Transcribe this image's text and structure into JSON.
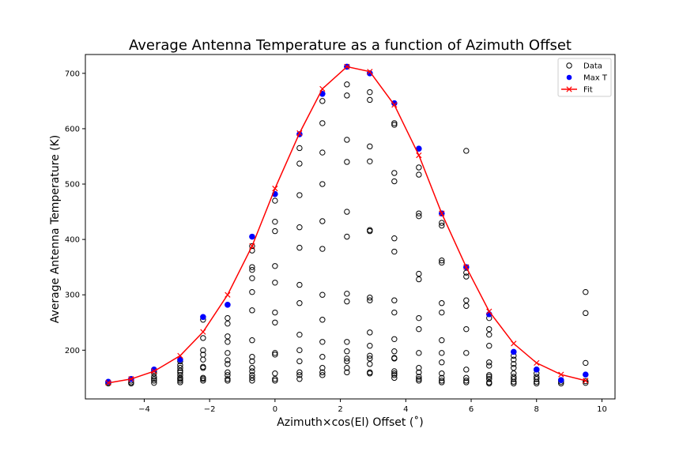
{
  "chart_data": {
    "type": "scatter",
    "title": "Average Antenna Temperature as a function of Azimuth Offset",
    "xlabel": "Azimuth×cos(El)  Offset (˚)",
    "ylabel": "Average Antenna Temperature (K)",
    "xlim": [
      -5.8,
      10.4
    ],
    "ylim": [
      112,
      734
    ],
    "x_ticks": [
      -4,
      -2,
      0,
      2,
      4,
      6,
      8,
      10
    ],
    "x_tick_labels": [
      "−4",
      "−2",
      "0",
      "2",
      "4",
      "6",
      "8",
      "10"
    ],
    "y_ticks": [
      200,
      300,
      400,
      500,
      600,
      700
    ],
    "y_tick_labels": [
      "200",
      "300",
      "400",
      "500",
      "600",
      "700"
    ],
    "grid": false,
    "legend_position": "top-right",
    "legend": [
      {
        "label": "Data",
        "marker": "open-circle",
        "color": "#000000"
      },
      {
        "label": "Max T",
        "marker": "filled-circle",
        "color": "#0000ff"
      },
      {
        "label": "Fit",
        "marker": "x-line",
        "color": "#ff0000"
      }
    ],
    "series": [
      {
        "name": "Data",
        "marker": "open-circle",
        "color": "#000000",
        "points": [
          [
            -5.1,
            140
          ],
          [
            -5.1,
            142
          ],
          [
            -4.4,
            140
          ],
          [
            -4.4,
            142
          ],
          [
            -4.4,
            145
          ],
          [
            -3.7,
            141
          ],
          [
            -3.7,
            145
          ],
          [
            -3.7,
            148
          ],
          [
            -3.7,
            152
          ],
          [
            -3.7,
            158
          ],
          [
            -3.7,
            162
          ],
          [
            -2.9,
            142
          ],
          [
            -2.9,
            145
          ],
          [
            -2.9,
            148
          ],
          [
            -2.9,
            150
          ],
          [
            -2.9,
            155
          ],
          [
            -2.9,
            160
          ],
          [
            -2.9,
            163
          ],
          [
            -2.9,
            168
          ],
          [
            -2.9,
            173
          ],
          [
            -2.9,
            180
          ],
          [
            -2.2,
            145
          ],
          [
            -2.2,
            148
          ],
          [
            -2.2,
            150
          ],
          [
            -2.2,
            168
          ],
          [
            -2.2,
            170
          ],
          [
            -2.2,
            183
          ],
          [
            -2.2,
            192
          ],
          [
            -2.2,
            200
          ],
          [
            -2.2,
            222
          ],
          [
            -2.2,
            255
          ],
          [
            -1.45,
            145
          ],
          [
            -1.45,
            148
          ],
          [
            -1.45,
            155
          ],
          [
            -1.45,
            160
          ],
          [
            -1.45,
            175
          ],
          [
            -1.45,
            182
          ],
          [
            -1.45,
            195
          ],
          [
            -1.45,
            215
          ],
          [
            -1.45,
            225
          ],
          [
            -1.45,
            248
          ],
          [
            -1.45,
            258
          ],
          [
            -0.7,
            145
          ],
          [
            -0.7,
            150
          ],
          [
            -0.7,
            155
          ],
          [
            -0.7,
            162
          ],
          [
            -0.7,
            168
          ],
          [
            -0.7,
            180
          ],
          [
            -0.7,
            188
          ],
          [
            -0.7,
            218
          ],
          [
            -0.7,
            272
          ],
          [
            -0.7,
            305
          ],
          [
            -0.7,
            330
          ],
          [
            -0.7,
            345
          ],
          [
            -0.7,
            350
          ],
          [
            -0.7,
            380
          ],
          [
            -0.7,
            388
          ],
          [
            0.0,
            145
          ],
          [
            0.0,
            148
          ],
          [
            0.0,
            158
          ],
          [
            0.0,
            192
          ],
          [
            0.0,
            195
          ],
          [
            0.0,
            250
          ],
          [
            0.0,
            268
          ],
          [
            0.0,
            322
          ],
          [
            0.0,
            352
          ],
          [
            0.0,
            415
          ],
          [
            0.0,
            432
          ],
          [
            0.0,
            470
          ],
          [
            0.75,
            148
          ],
          [
            0.75,
            155
          ],
          [
            0.75,
            160
          ],
          [
            0.75,
            180
          ],
          [
            0.75,
            200
          ],
          [
            0.75,
            228
          ],
          [
            0.75,
            285
          ],
          [
            0.75,
            318
          ],
          [
            0.75,
            385
          ],
          [
            0.75,
            422
          ],
          [
            0.75,
            480
          ],
          [
            0.75,
            537
          ],
          [
            0.75,
            565
          ],
          [
            1.45,
            155
          ],
          [
            1.45,
            160
          ],
          [
            1.45,
            168
          ],
          [
            1.45,
            188
          ],
          [
            1.45,
            215
          ],
          [
            1.45,
            255
          ],
          [
            1.45,
            300
          ],
          [
            1.45,
            383
          ],
          [
            1.45,
            433
          ],
          [
            1.45,
            500
          ],
          [
            1.45,
            557
          ],
          [
            1.45,
            610
          ],
          [
            1.45,
            650
          ],
          [
            2.2,
            160
          ],
          [
            2.2,
            168
          ],
          [
            2.2,
            180
          ],
          [
            2.2,
            185
          ],
          [
            2.2,
            198
          ],
          [
            2.2,
            215
          ],
          [
            2.2,
            288
          ],
          [
            2.2,
            302
          ],
          [
            2.2,
            405
          ],
          [
            2.2,
            450
          ],
          [
            2.2,
            540
          ],
          [
            2.2,
            580
          ],
          [
            2.2,
            660
          ],
          [
            2.2,
            680
          ],
          [
            2.9,
            158
          ],
          [
            2.9,
            160
          ],
          [
            2.9,
            175
          ],
          [
            2.9,
            185
          ],
          [
            2.9,
            190
          ],
          [
            2.9,
            208
          ],
          [
            2.9,
            232
          ],
          [
            2.9,
            290
          ],
          [
            2.9,
            295
          ],
          [
            2.9,
            415
          ],
          [
            2.9,
            417
          ],
          [
            2.9,
            541
          ],
          [
            2.9,
            568
          ],
          [
            2.9,
            652
          ],
          [
            2.9,
            666
          ],
          [
            3.65,
            150
          ],
          [
            3.65,
            155
          ],
          [
            3.65,
            158
          ],
          [
            3.65,
            162
          ],
          [
            3.65,
            185
          ],
          [
            3.65,
            186
          ],
          [
            3.65,
            198
          ],
          [
            3.65,
            220
          ],
          [
            3.65,
            268
          ],
          [
            3.65,
            290
          ],
          [
            3.65,
            378
          ],
          [
            3.65,
            402
          ],
          [
            3.65,
            505
          ],
          [
            3.65,
            520
          ],
          [
            3.65,
            607
          ],
          [
            3.65,
            610
          ],
          [
            4.4,
            145
          ],
          [
            4.4,
            148
          ],
          [
            4.4,
            152
          ],
          [
            4.4,
            160
          ],
          [
            4.4,
            168
          ],
          [
            4.4,
            195
          ],
          [
            4.4,
            238
          ],
          [
            4.4,
            258
          ],
          [
            4.4,
            328
          ],
          [
            4.4,
            338
          ],
          [
            4.4,
            442
          ],
          [
            4.4,
            447
          ],
          [
            4.4,
            517
          ],
          [
            4.4,
            530
          ],
          [
            5.1,
            142
          ],
          [
            5.1,
            145
          ],
          [
            5.1,
            150
          ],
          [
            5.1,
            158
          ],
          [
            5.1,
            178
          ],
          [
            5.1,
            195
          ],
          [
            5.1,
            218
          ],
          [
            5.1,
            268
          ],
          [
            5.1,
            285
          ],
          [
            5.1,
            358
          ],
          [
            5.1,
            362
          ],
          [
            5.1,
            425
          ],
          [
            5.1,
            430
          ],
          [
            5.85,
            142
          ],
          [
            5.85,
            145
          ],
          [
            5.85,
            150
          ],
          [
            5.85,
            165
          ],
          [
            5.85,
            195
          ],
          [
            5.85,
            238
          ],
          [
            5.85,
            280
          ],
          [
            5.85,
            290
          ],
          [
            5.85,
            333
          ],
          [
            5.85,
            340
          ],
          [
            5.85,
            560
          ],
          [
            6.55,
            140
          ],
          [
            6.55,
            142
          ],
          [
            6.55,
            148
          ],
          [
            6.55,
            152
          ],
          [
            6.55,
            155
          ],
          [
            6.55,
            172
          ],
          [
            6.55,
            178
          ],
          [
            6.55,
            208
          ],
          [
            6.55,
            228
          ],
          [
            6.55,
            238
          ],
          [
            6.55,
            258
          ],
          [
            7.3,
            140
          ],
          [
            7.3,
            143
          ],
          [
            7.3,
            148
          ],
          [
            7.3,
            152
          ],
          [
            7.3,
            158
          ],
          [
            7.3,
            168
          ],
          [
            7.3,
            175
          ],
          [
            7.3,
            183
          ],
          [
            7.3,
            190
          ],
          [
            8.0,
            140
          ],
          [
            8.0,
            143
          ],
          [
            8.0,
            148
          ],
          [
            8.0,
            152
          ],
          [
            8.0,
            158
          ],
          [
            8.0,
            165
          ],
          [
            8.75,
            140
          ],
          [
            8.75,
            143
          ],
          [
            8.75,
            146
          ],
          [
            9.5,
            141
          ],
          [
            9.5,
            144
          ],
          [
            9.5,
            177
          ],
          [
            9.5,
            267
          ],
          [
            9.5,
            305
          ]
        ]
      },
      {
        "name": "Max T",
        "marker": "filled-circle",
        "color": "#0000ff",
        "points": [
          [
            -5.1,
            143
          ],
          [
            -4.4,
            148
          ],
          [
            -3.7,
            165
          ],
          [
            -2.9,
            183
          ],
          [
            -2.2,
            260
          ],
          [
            -1.45,
            282
          ],
          [
            -0.7,
            405
          ],
          [
            0.0,
            482
          ],
          [
            0.75,
            590
          ],
          [
            1.45,
            663
          ],
          [
            2.2,
            712
          ],
          [
            2.9,
            700
          ],
          [
            3.65,
            646
          ],
          [
            4.4,
            564
          ],
          [
            5.1,
            447
          ],
          [
            5.85,
            350
          ],
          [
            6.55,
            265
          ],
          [
            7.3,
            197
          ],
          [
            8.0,
            165
          ],
          [
            8.75,
            146
          ],
          [
            9.5,
            156
          ]
        ]
      },
      {
        "name": "Fit",
        "marker": "x-line",
        "color": "#ff0000",
        "points": [
          [
            -5.1,
            141
          ],
          [
            -4.4,
            148
          ],
          [
            -3.7,
            162
          ],
          [
            -2.9,
            190
          ],
          [
            -2.2,
            233
          ],
          [
            -1.45,
            300
          ],
          [
            -0.7,
            388
          ],
          [
            0.0,
            492
          ],
          [
            0.75,
            592
          ],
          [
            1.45,
            672
          ],
          [
            2.2,
            712
          ],
          [
            2.9,
            703
          ],
          [
            3.65,
            643
          ],
          [
            4.4,
            552
          ],
          [
            5.1,
            447
          ],
          [
            5.85,
            350
          ],
          [
            6.55,
            270
          ],
          [
            7.3,
            212
          ],
          [
            8.0,
            177
          ],
          [
            8.75,
            156
          ],
          [
            9.5,
            145
          ]
        ]
      }
    ]
  }
}
